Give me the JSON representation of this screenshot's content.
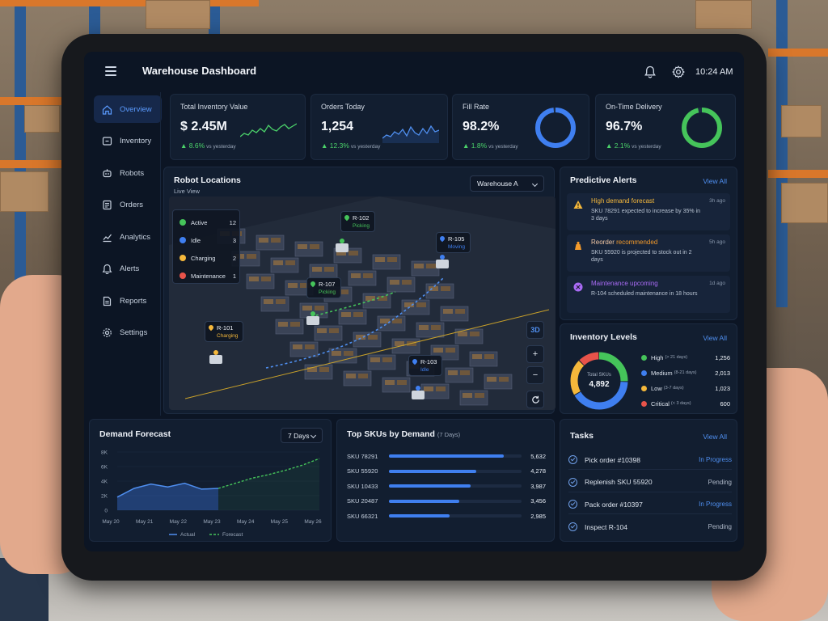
{
  "colors": {
    "accent": "#3f7ff0",
    "positive": "#4bd26a",
    "warning": "#f5b83b",
    "danger": "#e8534a",
    "purple": "#a96bf5",
    "green": "#45c45a"
  },
  "header": {
    "title": "Warehouse Dashboard",
    "time": "10:24 AM"
  },
  "sidebar": {
    "items": [
      {
        "label": "Overview",
        "icon": "home-icon",
        "active": true
      },
      {
        "label": "Inventory",
        "icon": "box-icon"
      },
      {
        "label": "Robots",
        "icon": "robot-icon"
      },
      {
        "label": "Orders",
        "icon": "orders-icon"
      },
      {
        "label": "Analytics",
        "icon": "analytics-icon"
      },
      {
        "label": "Alerts",
        "icon": "bell-icon"
      },
      {
        "label": "Reports",
        "icon": "document-icon"
      },
      {
        "label": "Settings",
        "icon": "gear-icon"
      }
    ]
  },
  "kpis": [
    {
      "title": "Total Inventory Value",
      "value": "$ 2.45M",
      "delta": "▲ 8.6%",
      "vs": "vs yesterday",
      "visual": "sparkline-green"
    },
    {
      "title": "Orders Today",
      "value": "1,254",
      "delta": "▲ 12.3%",
      "vs": "vs yesterday",
      "visual": "sparkline-blue"
    },
    {
      "title": "Fill Rate",
      "value": "98.2%",
      "delta": "▲ 1.8%",
      "vs": "vs yesterday",
      "ring_fraction": 0.982,
      "ring_color": "#3f7ff0"
    },
    {
      "title": "On-Time Delivery",
      "value": "96.7%",
      "delta": "▲ 2.1%",
      "vs": "vs yesterday",
      "ring_fraction": 0.967,
      "ring_color": "#45c45a"
    }
  ],
  "robot_map": {
    "title": "Robot Locations",
    "subtitle": "Live View",
    "warehouse": "Warehouse A",
    "legend": [
      {
        "label": "Active",
        "count": "12",
        "color": "#45c45a"
      },
      {
        "label": "Idle",
        "count": "3",
        "color": "#3f7ff0"
      },
      {
        "label": "Charging",
        "count": "2",
        "color": "#f5b83b"
      },
      {
        "label": "Maintenance",
        "count": "1",
        "color": "#e8534a"
      }
    ],
    "robots": [
      {
        "id": "R-102",
        "status": "Picking",
        "color": "#45c45a"
      },
      {
        "id": "R-105",
        "status": "Moving",
        "color": "#3f7ff0"
      },
      {
        "id": "R-107",
        "status": "Picking",
        "color": "#45c45a"
      },
      {
        "id": "R-101",
        "status": "Charging",
        "color": "#f5b83b"
      },
      {
        "id": "R-103",
        "status": "Idle",
        "color": "#3f7ff0"
      }
    ],
    "controls": {
      "view3d": "3D",
      "zoom_in": "+",
      "zoom_out": "−"
    }
  },
  "alerts": {
    "title": "Predictive Alerts",
    "view_all": "View All",
    "items": [
      {
        "title": "High demand forecast",
        "title_parts": [
          "High demand forecast",
          ""
        ],
        "time": "3h ago",
        "desc": "SKU 78291 expected to increase by 35% in 3 days",
        "color": "#f5b83b",
        "icon": "warning-icon"
      },
      {
        "title_parts": [
          "Reorder ",
          "recommended"
        ],
        "time": "5h ago",
        "desc": "SKU 55920 is projected to stock out in 2 days",
        "color": "#f39a2b",
        "icon": "reorder-icon"
      },
      {
        "title_parts": [
          "Maintenance upcoming",
          ""
        ],
        "time": "1d ago",
        "desc": "R-104 scheduled maintenance in 18 hours",
        "color": "#a96bf5",
        "icon": "tools-icon"
      }
    ]
  },
  "inventory_levels": {
    "title": "Inventory Levels",
    "view_all": "View All",
    "total_label": "Total SKUs",
    "total": "4,892",
    "items": [
      {
        "label": "High",
        "sub": "(> 21 days)",
        "value": 1256,
        "display": "1,256",
        "color": "#45c45a"
      },
      {
        "label": "Medium",
        "sub": "(8-21 days)",
        "value": 2013,
        "display": "2,013",
        "color": "#3f7ff0"
      },
      {
        "label": "Low",
        "sub": "(3-7 days)",
        "value": 1023,
        "display": "1,023",
        "color": "#f5b83b"
      },
      {
        "label": "Critical",
        "sub": "(< 3 days)",
        "value": 600,
        "display": "600",
        "color": "#e8534a"
      }
    ]
  },
  "demand_forecast": {
    "title": "Demand Forecast",
    "range": "7 Days",
    "legend_actual": "Actual",
    "legend_forecast": "Forecast"
  },
  "chart_data": {
    "type": "line",
    "categories": [
      "May 20",
      "May 21",
      "May 22",
      "May 23",
      "May 24",
      "May 25",
      "May 26"
    ],
    "y_ticks": [
      "8K",
      "6K",
      "4K",
      "2K",
      "0"
    ],
    "ylim": [
      0,
      8000
    ],
    "series": [
      {
        "name": "Actual",
        "x": [
          0,
          0.5,
          1,
          1.5,
          2,
          2.5,
          3
        ],
        "values": [
          1800,
          3000,
          3600,
          3200,
          3700,
          2900,
          3000
        ]
      },
      {
        "name": "Forecast",
        "x": [
          3,
          3.5,
          4,
          4.5,
          5,
          5.5,
          6
        ],
        "values": [
          3000,
          3700,
          4400,
          4900,
          5500,
          6200,
          7100
        ]
      }
    ],
    "grid": true,
    "legend": "bottom"
  },
  "top_skus": {
    "title": "Top SKUs by Demand",
    "range": "(7 Days)",
    "max": 6500,
    "items": [
      {
        "label": "SKU 78291",
        "value": 5632,
        "display": "5,632"
      },
      {
        "label": "SKU 55920",
        "value": 4278,
        "display": "4,278"
      },
      {
        "label": "SKU 10433",
        "value": 3987,
        "display": "3,987"
      },
      {
        "label": "SKU 20487",
        "value": 3456,
        "display": "3,456"
      },
      {
        "label": "SKU 66321",
        "value": 2985,
        "display": "2,985"
      }
    ]
  },
  "tasks": {
    "title": "Tasks",
    "view_all": "View All",
    "items": [
      {
        "label": "Pick order #10398",
        "status": "In Progress",
        "color": "#4f8ff0"
      },
      {
        "label": "Replenish SKU 55920",
        "status": "Pending",
        "color": "#aeb8c7"
      },
      {
        "label": "Pack order #10397",
        "status": "In Progress",
        "color": "#4f8ff0"
      },
      {
        "label": "Inspect R-104",
        "status": "Pending",
        "color": "#aeb8c7"
      }
    ]
  }
}
